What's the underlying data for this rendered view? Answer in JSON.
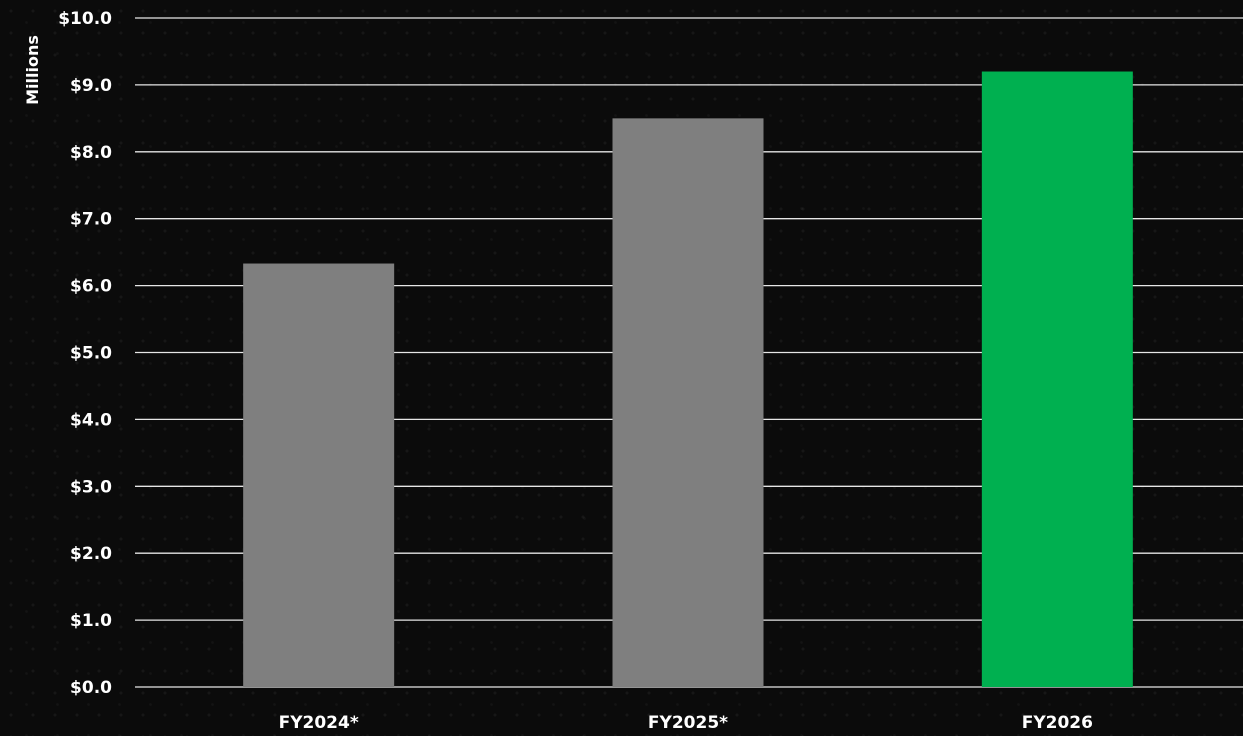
{
  "chart_data": {
    "type": "bar",
    "title": "",
    "xlabel": "",
    "ylabel": "Millions",
    "categories": [
      "FY2024*",
      "FY2025*",
      "FY2026"
    ],
    "values": [
      6.33,
      8.5,
      9.2
    ],
    "bar_colors": [
      "#7f7f7f",
      "#7f7f7f",
      "#00b050"
    ],
    "ylim": [
      0,
      10
    ],
    "ytick_step": 1,
    "ytick_labels": [
      "$0.0",
      "$1.0",
      "$2.0",
      "$3.0",
      "$4.0",
      "$5.0",
      "$6.0",
      "$7.0",
      "$8.0",
      "$9.0",
      "$10.0"
    ],
    "grid": true,
    "legend": "none",
    "background_color": "#0b0b0b",
    "gridline_color": "#e6e6e6",
    "text_color": "#ffffff"
  }
}
